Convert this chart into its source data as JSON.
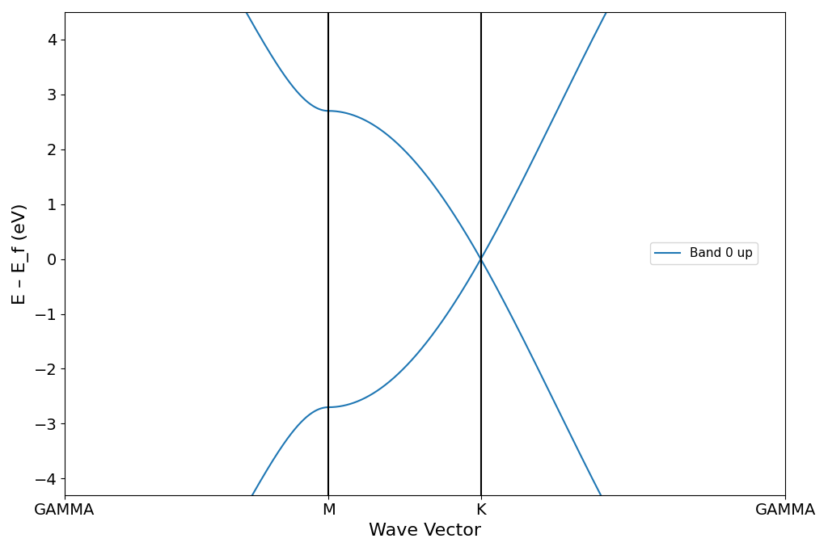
{
  "xlabel": "Wave Vector",
  "ylabel": "E – E_f (eV)",
  "ylim": [
    -4.3,
    4.5
  ],
  "yticks": [
    -4,
    -3,
    -2,
    -1,
    0,
    1,
    2,
    3,
    4
  ],
  "kpoint_labels": [
    "GAMMA",
    "M",
    "K",
    "GAMMA"
  ],
  "line_color": "#1f77b4",
  "line_width": 1.5,
  "background_color": "#ffffff",
  "legend_label": "Band 0 up",
  "figsize": [
    10.24,
    6.82
  ],
  "dpi": 100,
  "t_hop": 2.7,
  "ylabel_fontsize": 16,
  "xlabel_fontsize": 16,
  "tick_fontsize": 14,
  "legend_fontsize": 11
}
